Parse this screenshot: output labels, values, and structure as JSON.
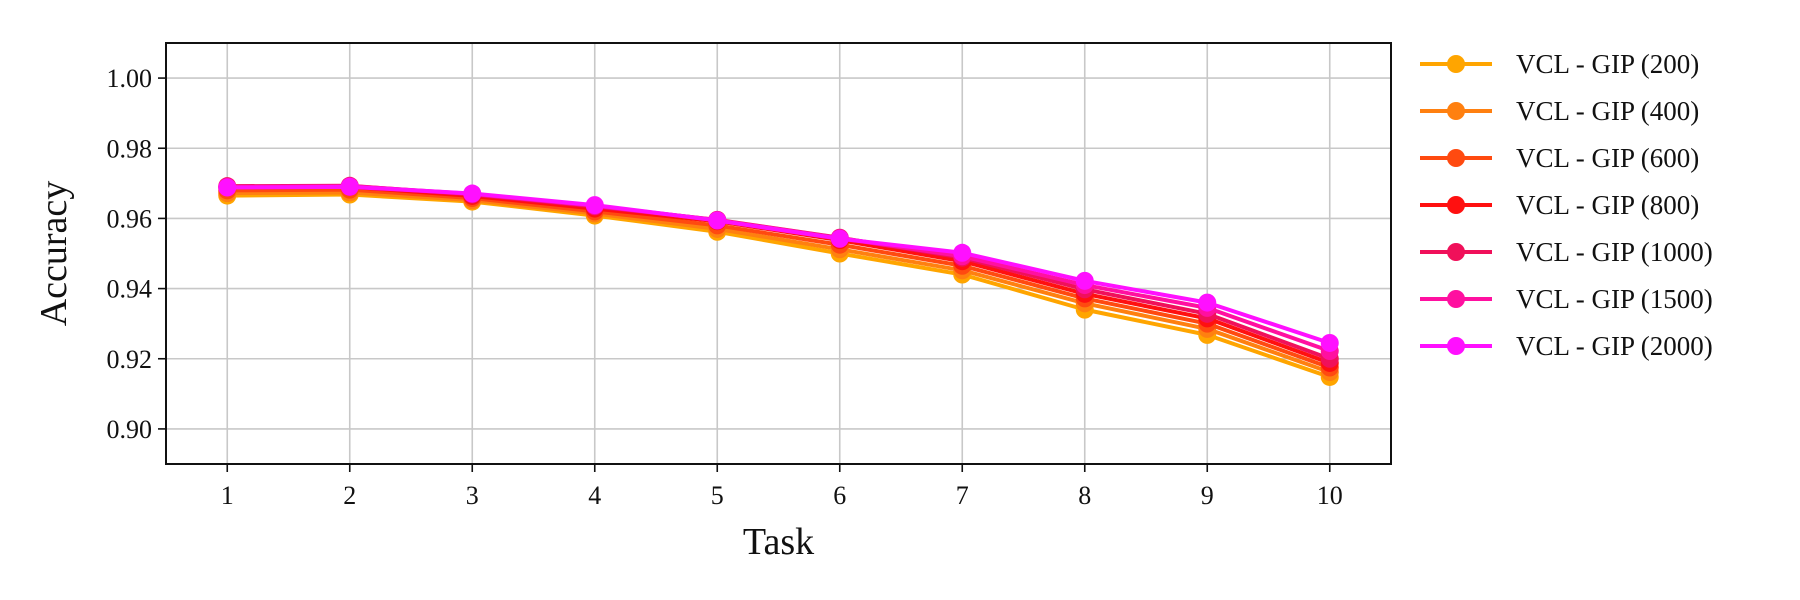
{
  "chart_data": {
    "type": "line",
    "title": "",
    "xlabel": "Task",
    "ylabel": "Accuracy",
    "x": [
      1,
      2,
      3,
      4,
      5,
      6,
      7,
      8,
      9,
      10
    ],
    "xlim": [
      0.5,
      10.5
    ],
    "ylim": [
      0.89,
      1.01
    ],
    "yticks": [
      0.9,
      0.92,
      0.94,
      0.96,
      0.98,
      1.0
    ],
    "ytick_labels": [
      "0.90",
      "0.92",
      "0.94",
      "0.96",
      "0.98",
      "1.00"
    ],
    "xticks": [
      1,
      2,
      3,
      4,
      5,
      6,
      7,
      8,
      9,
      10
    ],
    "xtick_labels": [
      "1",
      "2",
      "3",
      "4",
      "5",
      "6",
      "7",
      "8",
      "9",
      "10"
    ],
    "grid": true,
    "legend_position": "outside-right",
    "series": [
      {
        "name": "VCL - GIP (200)",
        "color": "#FFA500",
        "values": [
          0.9665,
          0.9668,
          0.9648,
          0.9608,
          0.9562,
          0.95,
          0.944,
          0.934,
          0.9268,
          0.9148
        ]
      },
      {
        "name": "VCL - GIP (400)",
        "color": "#FF8010",
        "values": [
          0.9672,
          0.9674,
          0.9652,
          0.9614,
          0.957,
          0.9512,
          0.9452,
          0.9358,
          0.9285,
          0.9162
        ]
      },
      {
        "name": "VCL - GIP (600)",
        "color": "#FF4A10",
        "values": [
          0.968,
          0.9682,
          0.9658,
          0.962,
          0.958,
          0.9525,
          0.9465,
          0.9372,
          0.93,
          0.9175
        ]
      },
      {
        "name": "VCL - GIP (800)",
        "color": "#FF1010",
        "values": [
          0.9688,
          0.969,
          0.9664,
          0.9628,
          0.9592,
          0.9538,
          0.9478,
          0.9385,
          0.9315,
          0.9188
        ]
      },
      {
        "name": "VCL - GIP (1000)",
        "color": "#F0105A",
        "values": [
          0.9692,
          0.9693,
          0.9668,
          0.9634,
          0.9596,
          0.9545,
          0.9488,
          0.9398,
          0.9328,
          0.92
        ]
      },
      {
        "name": "VCL - GIP (1500)",
        "color": "#FF10A0",
        "values": [
          0.969,
          0.9692,
          0.967,
          0.9636,
          0.9595,
          0.9544,
          0.9492,
          0.941,
          0.9345,
          0.9222
        ]
      },
      {
        "name": "VCL - GIP (2000)",
        "color": "#FF10FF",
        "values": [
          0.9688,
          0.969,
          0.9671,
          0.9638,
          0.9594,
          0.9542,
          0.9502,
          0.9422,
          0.936,
          0.9245
        ]
      }
    ]
  }
}
